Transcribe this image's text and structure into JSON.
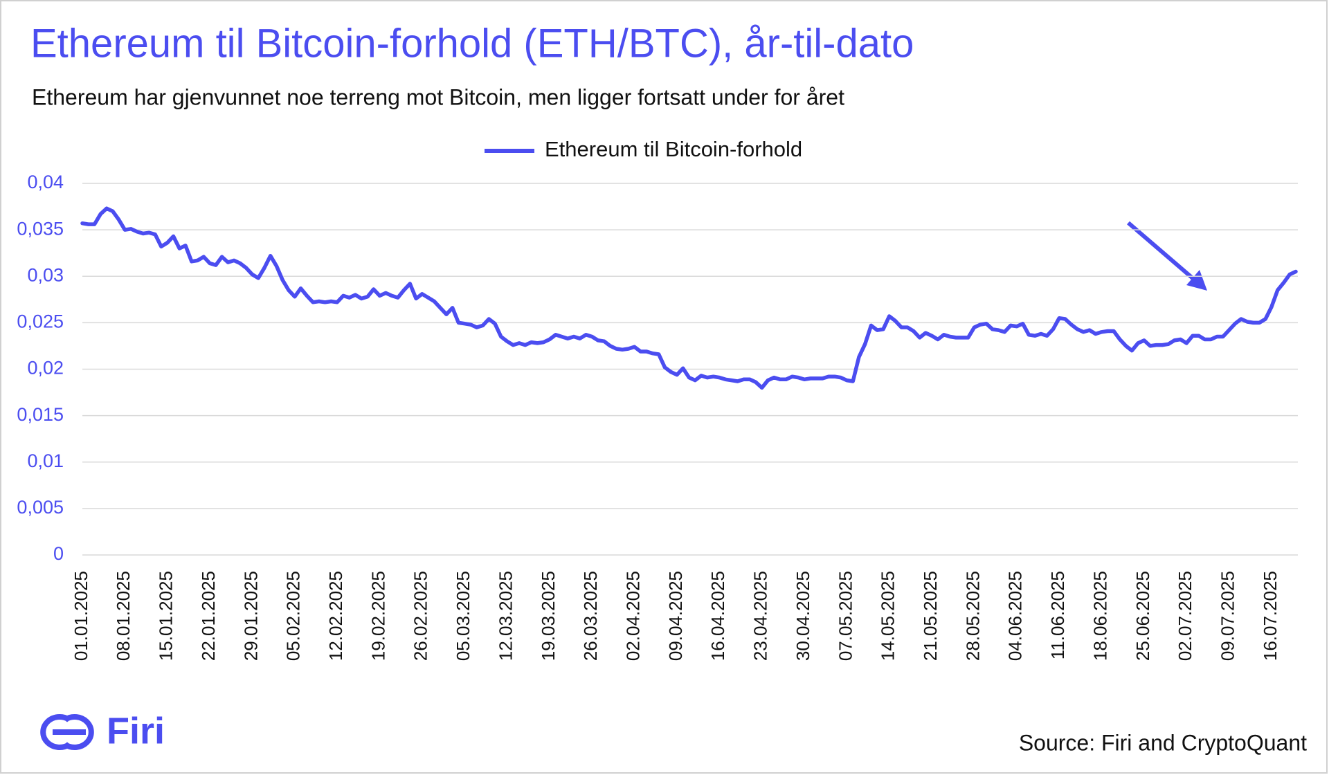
{
  "chart_data": {
    "type": "line",
    "title": "Ethereum til Bitcoin-forhold (ETH/BTC), år-til-dato",
    "subtitle": "Ethereum har gjenvunnet noe terreng mot Bitcoin, men ligger fortsatt under for året",
    "source": "Source: Firi and CryptoQuant",
    "logo": "Firi",
    "legend": "top",
    "grid": true,
    "ylim": [
      0,
      0.04
    ],
    "yticks": [
      0,
      {
        "value": 0.005,
        "label": "0,005"
      },
      {
        "value": 0.01,
        "label": "0,01"
      },
      {
        "value": 0.015,
        "label": "0,015"
      },
      {
        "value": 0.02,
        "label": "0,02"
      },
      {
        "value": 0.025,
        "label": "0,025"
      },
      {
        "value": 0.03,
        "label": "0,03"
      },
      {
        "value": 0.035,
        "label": "0,035"
      },
      {
        "value": 0.04,
        "label": "0,04"
      }
    ],
    "categories": [
      "01.01.2025",
      null,
      null,
      null,
      null,
      null,
      null,
      "08.01.2025",
      null,
      null,
      null,
      null,
      null,
      null,
      "15.01.2025",
      null,
      null,
      null,
      null,
      null,
      null,
      "22.01.2025",
      null,
      null,
      null,
      null,
      null,
      null,
      "29.01.2025",
      null,
      null,
      null,
      null,
      null,
      null,
      "05.02.2025",
      null,
      null,
      null,
      null,
      null,
      null,
      "12.02.2025",
      null,
      null,
      null,
      null,
      null,
      null,
      "19.02.2025",
      null,
      null,
      null,
      null,
      null,
      null,
      "26.02.2025",
      null,
      null,
      null,
      null,
      null,
      null,
      "05.03.2025",
      null,
      null,
      null,
      null,
      null,
      null,
      "12.03.2025",
      null,
      null,
      null,
      null,
      null,
      null,
      "19.03.2025",
      null,
      null,
      null,
      null,
      null,
      null,
      "26.03.2025",
      null,
      null,
      null,
      null,
      null,
      null,
      "02.04.2025",
      null,
      null,
      null,
      null,
      null,
      null,
      "09.04.2025",
      null,
      null,
      null,
      null,
      null,
      null,
      "16.04.2025",
      null,
      null,
      null,
      null,
      null,
      null,
      "23.04.2025",
      null,
      null,
      null,
      null,
      null,
      null,
      "30.04.2025",
      null,
      null,
      null,
      null,
      null,
      null,
      "07.05.2025",
      null,
      null,
      null,
      null,
      null,
      null,
      "14.05.2025",
      null,
      null,
      null,
      null,
      null,
      null,
      "21.05.2025",
      null,
      null,
      null,
      null,
      null,
      null,
      "28.05.2025",
      null,
      null,
      null,
      null,
      null,
      null,
      "04.06.2025",
      null,
      null,
      null,
      null,
      null,
      null,
      "11.06.2025",
      null,
      null,
      null,
      null,
      null,
      null,
      "18.06.2025",
      null,
      null,
      null,
      null,
      null,
      null,
      "25.06.2025",
      null,
      null,
      null,
      null,
      null,
      null,
      "02.07.2025",
      null,
      null,
      null,
      null,
      null,
      null,
      "09.07.2025",
      null,
      null,
      null,
      null,
      null,
      null,
      "16.07.2025",
      null,
      null,
      null,
      null
    ],
    "series": [
      {
        "name": "Ethereum til Bitcoin-forhold",
        "color": "#4b4df0",
        "values": [
          0.0357,
          0.0356,
          0.0356,
          0.0367,
          0.0373,
          0.037,
          0.0361,
          0.035,
          0.0351,
          0.0348,
          0.0346,
          0.0347,
          0.0345,
          0.0332,
          0.0336,
          0.0343,
          0.033,
          0.0333,
          0.0316,
          0.0317,
          0.0321,
          0.0314,
          0.0312,
          0.0321,
          0.0315,
          0.0317,
          0.0314,
          0.0309,
          0.0302,
          0.0298,
          0.0309,
          0.0322,
          0.0311,
          0.0296,
          0.0285,
          0.0278,
          0.0287,
          0.0279,
          0.0272,
          0.0273,
          0.0272,
          0.0273,
          0.0272,
          0.0279,
          0.0277,
          0.028,
          0.0276,
          0.0278,
          0.0286,
          0.0279,
          0.0282,
          0.0279,
          0.0277,
          0.0285,
          0.0292,
          0.0276,
          0.0281,
          0.0277,
          0.0273,
          0.0266,
          0.0259,
          0.0266,
          0.025,
          0.0249,
          0.0248,
          0.0245,
          0.0247,
          0.0254,
          0.0249,
          0.0235,
          0.023,
          0.0226,
          0.0228,
          0.0226,
          0.0229,
          0.0228,
          0.0229,
          0.0232,
          0.0237,
          0.0235,
          0.0233,
          0.0235,
          0.0233,
          0.0237,
          0.0235,
          0.0231,
          0.023,
          0.0225,
          0.0222,
          0.0221,
          0.0222,
          0.0224,
          0.0219,
          0.0219,
          0.0217,
          0.0216,
          0.0202,
          0.0197,
          0.0194,
          0.0201,
          0.0191,
          0.0188,
          0.0193,
          0.0191,
          0.0192,
          0.0191,
          0.0189,
          0.0188,
          0.0187,
          0.0189,
          0.0189,
          0.0186,
          0.018,
          0.0188,
          0.0191,
          0.0189,
          0.0189,
          0.0192,
          0.0191,
          0.0189,
          0.019,
          0.019,
          0.019,
          0.0192,
          0.0192,
          0.0191,
          0.0188,
          0.0187,
          0.0213,
          0.0227,
          0.0247,
          0.0242,
          0.0243,
          0.0257,
          0.0252,
          0.0245,
          0.0245,
          0.0241,
          0.0234,
          0.0239,
          0.0236,
          0.0232,
          0.0237,
          0.0235,
          0.0234,
          0.0234,
          0.0234,
          0.0245,
          0.0248,
          0.0249,
          0.0243,
          0.0242,
          0.024,
          0.0247,
          0.0246,
          0.0249,
          0.0237,
          0.0236,
          0.0238,
          0.0236,
          0.0243,
          0.0255,
          0.0254,
          0.0248,
          0.0243,
          0.024,
          0.0242,
          0.0238,
          0.024,
          0.0241,
          0.0241,
          0.0232,
          0.0225,
          0.022,
          0.0228,
          0.0231,
          0.0225,
          0.0226,
          0.0226,
          0.0227,
          0.0231,
          0.0232,
          0.0228,
          0.0236,
          0.0236,
          0.0232,
          0.0232,
          0.0235,
          0.0235,
          0.0242,
          0.0249,
          0.0254,
          0.0251,
          0.025,
          0.025,
          0.0254,
          0.0267,
          0.0285,
          0.0293,
          0.0302,
          0.0305
        ]
      }
    ]
  }
}
